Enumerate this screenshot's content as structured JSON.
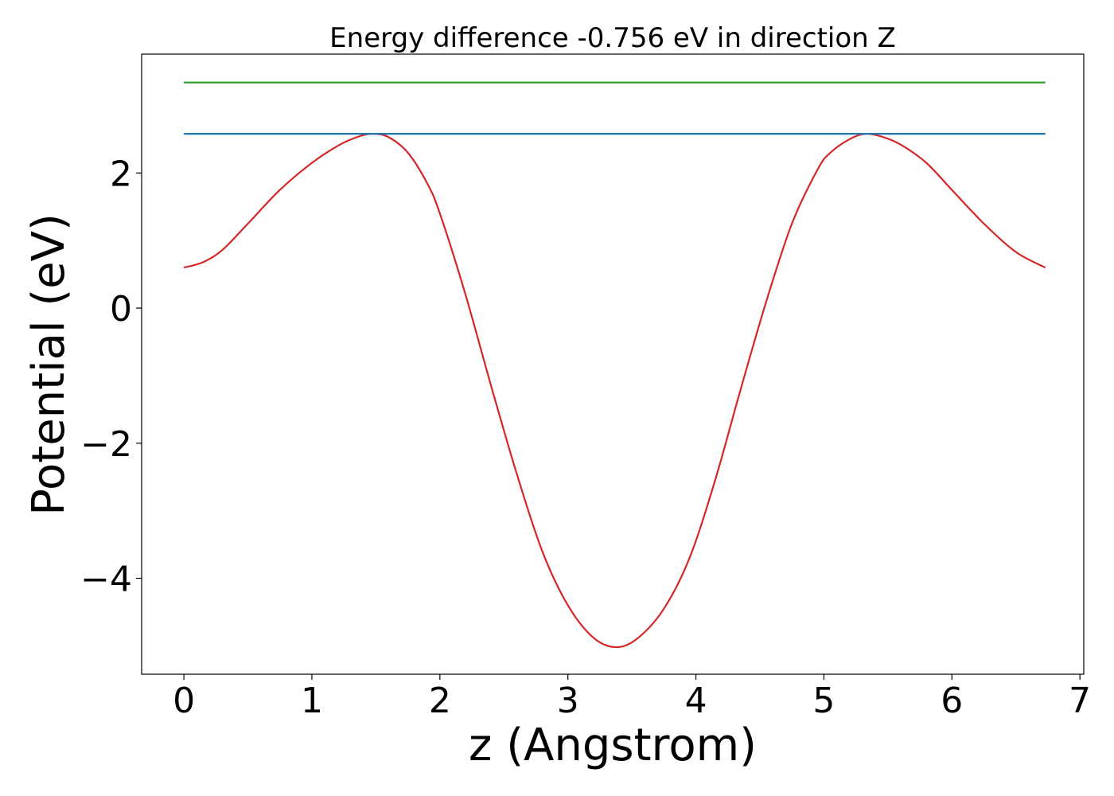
{
  "chart_data": {
    "type": "line",
    "title": "Energy difference -0.756 eV in direction Z",
    "xlabel": "z (Angstrom)",
    "ylabel": "Potential (eV)",
    "xlim": [
      -0.33,
      7.03
    ],
    "ylim": [
      -5.42,
      3.76
    ],
    "xticks": [
      0,
      1,
      2,
      3,
      4,
      5,
      6,
      7
    ],
    "xtick_labels": [
      "0",
      "1",
      "2",
      "3",
      "4",
      "5",
      "6",
      "7"
    ],
    "yticks": [
      -4,
      -2,
      0,
      2
    ],
    "ytick_labels": [
      "−4",
      "−2",
      "0",
      "2"
    ],
    "grid": false,
    "legend": "none",
    "series": [
      {
        "color": "#d62728",
        "x": [
          0.0,
          0.15,
          0.3,
          0.5,
          0.75,
          1.0,
          1.2,
          1.35,
          1.47,
          1.6,
          1.75,
          1.9,
          2.0,
          2.2,
          2.4,
          2.6,
          2.8,
          3.0,
          3.2,
          3.38,
          3.55,
          3.75,
          3.95,
          4.15,
          4.35,
          4.55,
          4.75,
          4.95,
          5.05,
          5.2,
          5.32,
          5.45,
          5.6,
          5.8,
          6.0,
          6.25,
          6.5,
          6.73
        ],
        "y": [
          0.6,
          0.68,
          0.86,
          1.25,
          1.75,
          2.15,
          2.4,
          2.53,
          2.58,
          2.53,
          2.3,
          1.85,
          1.4,
          0.2,
          -1.15,
          -2.45,
          -3.6,
          -4.4,
          -4.88,
          -5.02,
          -4.88,
          -4.45,
          -3.7,
          -2.55,
          -1.2,
          0.1,
          1.25,
          2.05,
          2.3,
          2.5,
          2.58,
          2.54,
          2.42,
          2.15,
          1.75,
          1.25,
          0.83,
          0.6
        ]
      },
      {
        "color": "#1f77b4",
        "x": [
          0.0,
          6.73
        ],
        "y": [
          2.58,
          2.58
        ]
      },
      {
        "color": "#2ca02c",
        "x": [
          0.0,
          6.73
        ],
        "y": [
          3.34,
          3.34
        ]
      }
    ]
  }
}
